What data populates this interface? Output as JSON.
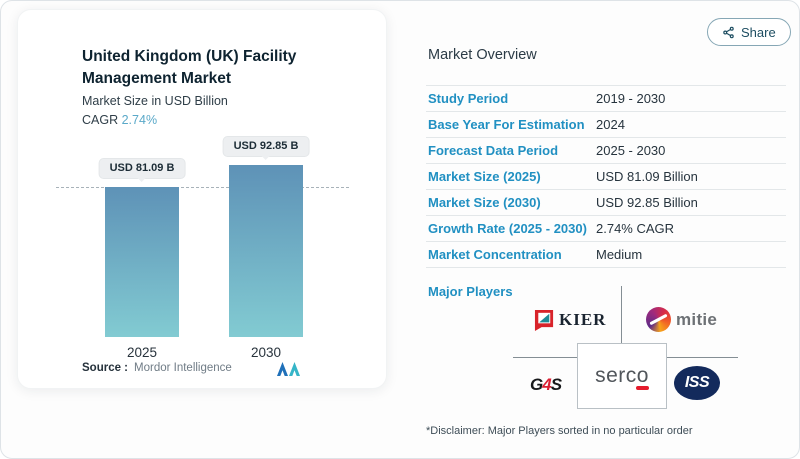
{
  "chart_card": {
    "title": "United Kingdom (UK) Facility Management Market",
    "subtitle": "Market Size in USD Billion",
    "cagr_label": "CAGR",
    "cagr_value": "2.74%",
    "source_label": "Source :",
    "source_name": "Mordor Intelligence"
  },
  "chart_data": {
    "type": "bar",
    "title": "United Kingdom (UK) Facility Management Market",
    "ylabel": "Market Size in USD Billion",
    "categories": [
      "2025",
      "2030"
    ],
    "values": [
      81.09,
      92.85
    ],
    "unit": "USD Billion",
    "bar_labels": [
      "USD 81.09 B",
      "USD 92.85 B"
    ],
    "cagr_percent": 2.74,
    "reference_line": {
      "value": 81.09,
      "style": "dashed"
    },
    "legend": false,
    "grid": false,
    "bar_color_top": "#5e92b7",
    "bar_color_bottom": "#82cbd2",
    "source": "Mordor Intelligence"
  },
  "overview": {
    "heading": "Market Overview",
    "share_label": "Share",
    "rows": [
      {
        "label": "Study Period",
        "value": "2019 - 2030"
      },
      {
        "label": "Base Year For Estimation",
        "value": "2024"
      },
      {
        "label": "Forecast Data Period",
        "value": "2025 - 2030"
      },
      {
        "label": "Market Size (2025)",
        "value": "USD 81.09 Billion"
      },
      {
        "label": "Market Size (2030)",
        "value": "USD 92.85 Billion"
      },
      {
        "label": "Growth Rate (2025 - 2030)",
        "value": "2.74% CAGR"
      },
      {
        "label": "Market Concentration",
        "value": "Medium"
      }
    ],
    "major_players_label": "Major Players",
    "players": {
      "kier": "KIER",
      "mitie": "mitie",
      "g4s": [
        "G",
        "4",
        "S"
      ],
      "serco": "serco",
      "iss": "ISS"
    },
    "disclaimer": "*Disclaimer: Major Players sorted in no particular order"
  },
  "colors": {
    "label_blue": "#2190c2",
    "cagr_teal": "#5aa9c9",
    "kier_red": "#d8232a",
    "kier_teal": "#1d8a96",
    "g4s_red": "#dc1e32",
    "iss_navy": "#132a5c",
    "serco_red": "#e51b2c",
    "mordor_blue": "#1f70b9",
    "mordor_teal": "#36b5c8"
  }
}
